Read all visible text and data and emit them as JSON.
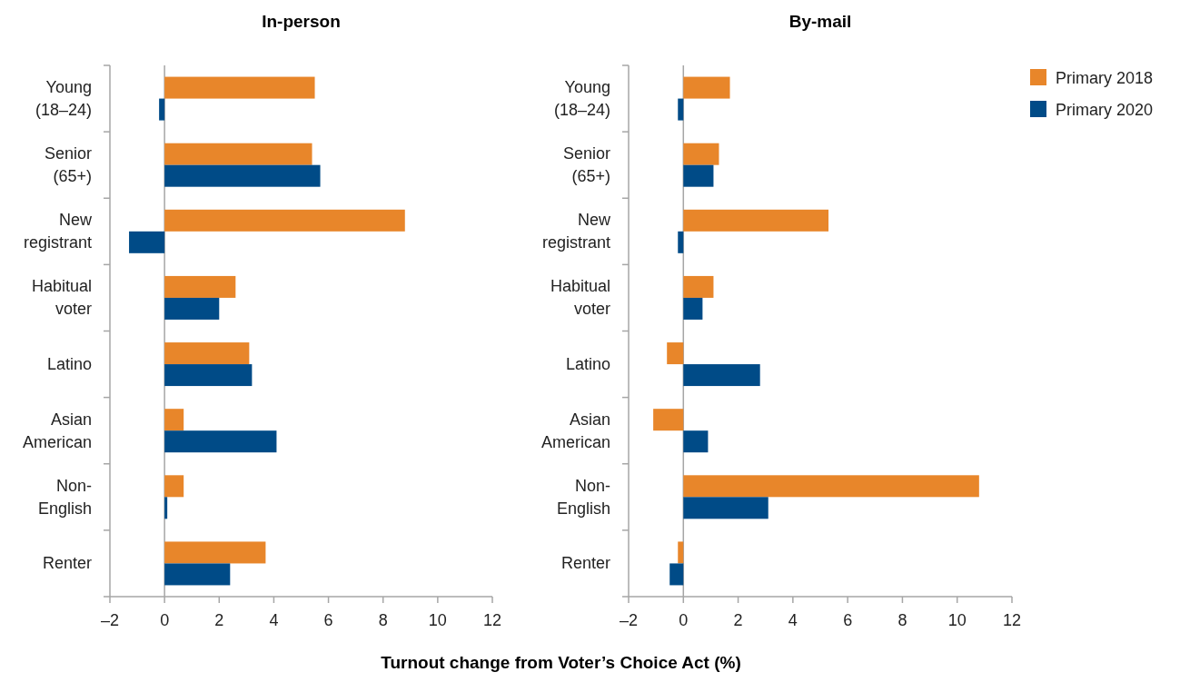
{
  "chart_data": [
    {
      "type": "bar",
      "orientation": "horizontal",
      "title": "In-person",
      "xlabel": "Turnout change from Voter’s Choice Act (%)",
      "categories": [
        "Young (18–24)",
        "Senior (65+)",
        "New registrant",
        "Habitual voter",
        "Latino",
        "Asian American",
        "Non-English",
        "Renter"
      ],
      "series": [
        {
          "color": "#e8862a",
          "values": [
            5.5,
            5.4,
            8.8,
            2.6,
            3.1,
            0.7,
            0.7,
            3.7
          ]
        },
        {
          "color": "#004b87",
          "values": [
            -0.2,
            5.7,
            -1.3,
            2.0,
            3.2,
            4.1,
            0.1,
            2.4
          ]
        }
      ],
      "xlim": [
        -2,
        12
      ],
      "xticks": [
        {
          "value": -2,
          "label": "–2"
        },
        0,
        2,
        4,
        6,
        8,
        10,
        12
      ],
      "legend": false
    },
    {
      "type": "bar",
      "orientation": "horizontal",
      "title": "By-mail",
      "categories": [
        "Young (18–24)",
        "Senior (65+)",
        "New registrant",
        "Habitual voter",
        "Latino",
        "Asian American",
        "Non-English",
        "Renter"
      ],
      "series": [
        {
          "name": "Primary 2018",
          "color": "#e8862a",
          "values": [
            1.7,
            1.3,
            5.3,
            1.1,
            -0.6,
            -1.1,
            10.8,
            -0.2
          ]
        },
        {
          "name": "Primary 2020",
          "color": "#004b87",
          "values": [
            -0.2,
            1.1,
            -0.2,
            0.7,
            2.8,
            0.9,
            3.1,
            -0.5
          ]
        }
      ],
      "xlim": [
        -2,
        12
      ],
      "xticks": [
        {
          "value": -2,
          "label": "–2"
        },
        0,
        2,
        4,
        6,
        8,
        10,
        12
      ],
      "legend": "top right"
    }
  ]
}
